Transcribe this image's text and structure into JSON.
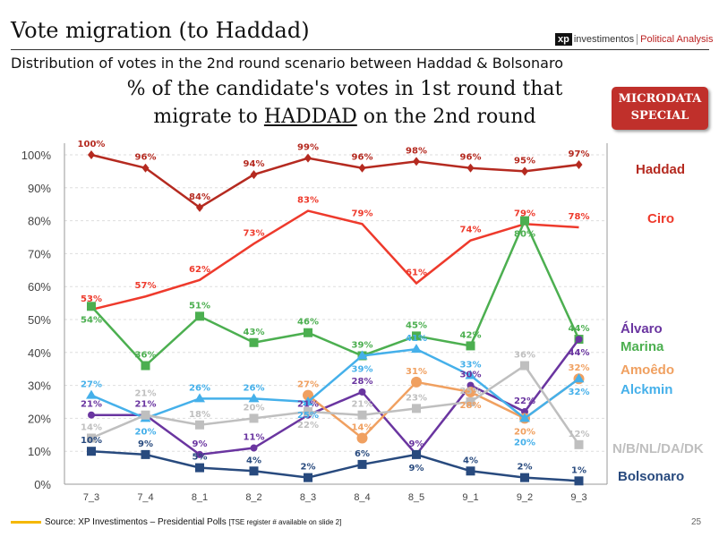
{
  "header": {
    "title": "Vote migration (to Haddad)",
    "subtitle": "Distribution of votes in the 2nd round scenario between Haddad & Bolsonaro",
    "logo_xp": "xp",
    "logo_text": "investimentos",
    "logo_section": "Political Analysis",
    "badge": "MICRODATA SPECIAL"
  },
  "chart_data": {
    "type": "line",
    "title_pre": "% of the candidate's votes in 1st round that migrate to ",
    "title_em": "HADDAD",
    "title_post": " on the 2nd round",
    "categories": [
      "7_3",
      "7_4",
      "8_1",
      "8_2",
      "8_3",
      "8_4",
      "8_5",
      "9_1",
      "9_2",
      "9_3"
    ],
    "ylim": [
      0,
      100
    ],
    "yticks": [
      "0%",
      "10%",
      "20%",
      "30%",
      "40%",
      "50%",
      "60%",
      "70%",
      "80%",
      "90%",
      "100%"
    ],
    "grid": true,
    "legend": "right",
    "series": [
      {
        "name": "Haddad",
        "color": "#b52a20",
        "marker": "diamond",
        "values": [
          100,
          96,
          84,
          94,
          99,
          96,
          98,
          96,
          95,
          97
        ]
      },
      {
        "name": "Ciro",
        "color": "#ee3a2c",
        "marker": "dash",
        "values": [
          53,
          57,
          62,
          73,
          83,
          79,
          61,
          74,
          79,
          78
        ]
      },
      {
        "name": "Marina",
        "color": "#4caf50",
        "marker": "square",
        "values": [
          54,
          36,
          51,
          43,
          46,
          39,
          45,
          42,
          80,
          44
        ]
      },
      {
        "name": "Álvaro",
        "color": "#6a35a0",
        "marker": "circle",
        "values": [
          21,
          21,
          9,
          11,
          21,
          28,
          9,
          30,
          22,
          44
        ]
      },
      {
        "name": "Amoêdo",
        "color": "#f0a060",
        "marker": "circle",
        "values": [
          null,
          null,
          null,
          null,
          27,
          14,
          31,
          28,
          20,
          32
        ]
      },
      {
        "name": "Alckmin",
        "color": "#45b0ea",
        "marker": "triangle",
        "values": [
          27,
          20,
          26,
          26,
          25,
          39,
          41,
          33,
          20,
          32
        ]
      },
      {
        "name": "N/B/NL/DA/DK",
        "color": "#bfbfbf",
        "marker": "square",
        "values": [
          14,
          21,
          18,
          20,
          22,
          21,
          23,
          25,
          36,
          12
        ]
      },
      {
        "name": "Bolsonaro",
        "color": "#284a7e",
        "marker": "square",
        "values": [
          10,
          9,
          5,
          4,
          2,
          6,
          9,
          4,
          2,
          1
        ]
      }
    ]
  },
  "footer": {
    "source": "Source: XP Investimentos – Presidential Polls",
    "note": "[TSE register # available on slide 2]",
    "page": "25"
  }
}
